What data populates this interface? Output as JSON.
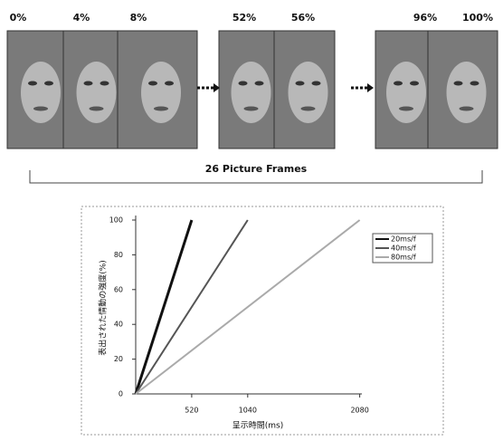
{
  "frames": {
    "labels": [
      "0%",
      "4%",
      "8%",
      "52%",
      "56%",
      "96%",
      "100%"
    ],
    "caption": "26 Picture Frames"
  },
  "chart_data": {
    "type": "line",
    "xlabel": "呈示時間(ms)",
    "ylabel": "表出された情動の強度(%)",
    "xlim": [
      0,
      2100
    ],
    "xticks": [
      520,
      1040,
      2080
    ],
    "ylim": [
      0,
      100
    ],
    "yticks": [
      0,
      20,
      40,
      60,
      80,
      100
    ],
    "grid": false,
    "legend": "upper right",
    "series": [
      {
        "name": "20ms/f",
        "color": "#111111",
        "x": [
          0,
          520
        ],
        "values": [
          0,
          100
        ]
      },
      {
        "name": "40ms/f",
        "color": "#555555",
        "x": [
          0,
          1040
        ],
        "values": [
          0,
          100
        ]
      },
      {
        "name": "80ms/f",
        "color": "#aaaaaa",
        "x": [
          0,
          2080
        ],
        "values": [
          0,
          100
        ]
      }
    ]
  }
}
